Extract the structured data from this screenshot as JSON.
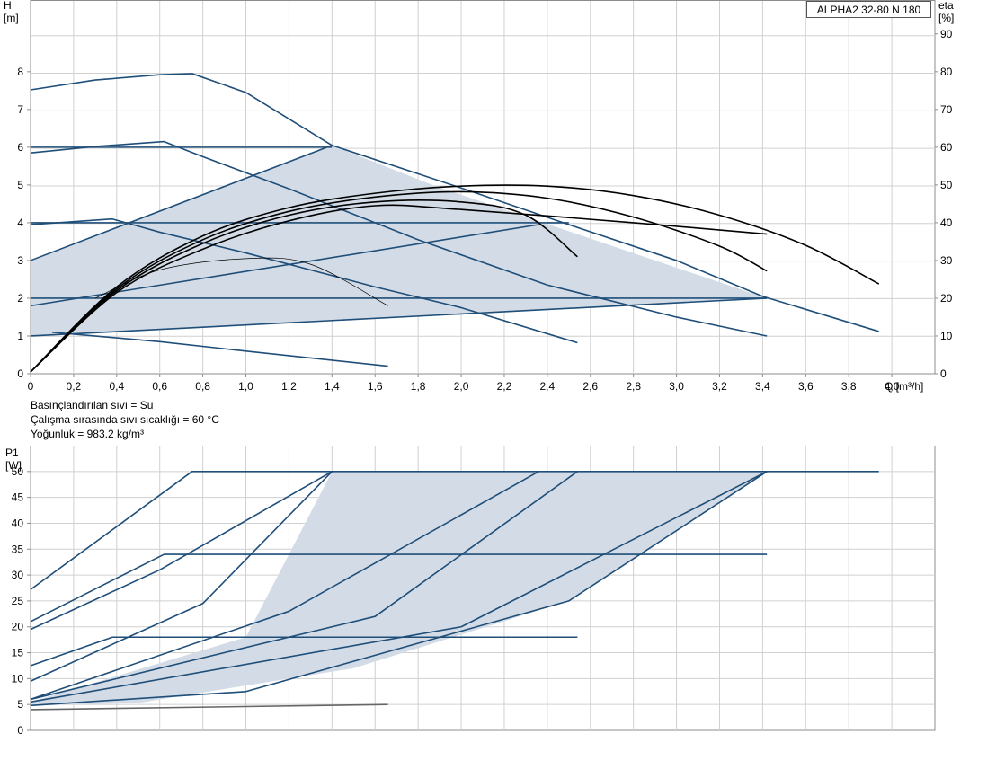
{
  "chart_data": [
    {
      "type": "line",
      "title": "ALPHA2 32-80 N 180",
      "ylabel": "H",
      "ylabel_unit": "[m]",
      "y2label": "eta",
      "y2label_unit": "[%]",
      "xlabel": "Q [m³/h]",
      "xlim": [
        0,
        4.2
      ],
      "ylim": [
        0,
        9.9
      ],
      "y2lim": [
        0,
        99
      ],
      "x_ticks": [
        "0",
        "0,2",
        "0,4",
        "0,6",
        "0,8",
        "1,0",
        "1,2",
        "1,4",
        "1,6",
        "1,8",
        "2,0",
        "2,2",
        "2,4",
        "2,6",
        "2,8",
        "3,0",
        "3,2",
        "3,4",
        "3,6",
        "3,8",
        "4,0"
      ],
      "y_ticks": [
        "0",
        "1",
        "2",
        "3",
        "4",
        "5",
        "6",
        "7",
        "8"
      ],
      "y2_ticks": [
        "0",
        "10",
        "20",
        "30",
        "40",
        "50",
        "60",
        "70",
        "80",
        "90"
      ],
      "grid": true,
      "shaded_region": {
        "color": "#d3dce6",
        "points": [
          [
            0,
            1.0
          ],
          [
            0,
            3.0
          ],
          [
            1.4,
            6.05
          ],
          [
            1.88,
            4.97
          ],
          [
            3.42,
            2.0
          ],
          [
            0,
            1.0
          ]
        ]
      },
      "series": [
        {
          "values": [
            [
              0,
              7.52
            ],
            [
              0.3,
              7.78
            ],
            [
              0.6,
              7.92
            ],
            [
              0.75,
              7.95
            ],
            [
              1.0,
              7.45
            ],
            [
              1.4,
              6.05
            ],
            [
              2.0,
              4.92
            ],
            [
              2.5,
              3.95
            ],
            [
              3.0,
              3.0
            ],
            [
              3.4,
              2.05
            ],
            [
              3.94,
              1.12
            ]
          ],
          "color": "#1f4e79"
        },
        {
          "values": [
            [
              0,
              5.85
            ],
            [
              0.3,
              6.02
            ],
            [
              0.62,
              6.15
            ],
            [
              0.8,
              5.75
            ],
            [
              1.2,
              4.9
            ],
            [
              1.8,
              3.55
            ],
            [
              2.4,
              2.35
            ],
            [
              3.0,
              1.5
            ],
            [
              3.42,
              1.0
            ]
          ],
          "color": "#1f4e79"
        },
        {
          "values": [
            [
              0,
              3.95
            ],
            [
              0.38,
              4.1
            ],
            [
              0.6,
              3.75
            ],
            [
              1.0,
              3.2
            ],
            [
              1.6,
              2.3
            ],
            [
              2.0,
              1.75
            ],
            [
              2.54,
              0.82
            ]
          ],
          "color": "#1f4e79"
        },
        {
          "values": [
            [
              0,
              6.0
            ],
            [
              1.4,
              6.0
            ]
          ],
          "color": "#1f4e79"
        },
        {
          "values": [
            [
              0,
              4.0
            ],
            [
              2.5,
              4.0
            ]
          ],
          "color": "#1f4e79"
        },
        {
          "values": [
            [
              0,
              2.0
            ],
            [
              3.42,
              2.0
            ]
          ],
          "color": "#1f4e79"
        },
        {
          "values": [
            [
              0,
              3.0
            ],
            [
              1.4,
              6.05
            ]
          ],
          "color": "#1f4e79"
        },
        {
          "values": [
            [
              0,
              1.8
            ],
            [
              2.36,
              3.95
            ]
          ],
          "color": "#1f4e79"
        },
        {
          "values": [
            [
              0,
              1.0
            ],
            [
              3.42,
              2.0
            ]
          ],
          "color": "#1f4e79"
        },
        {
          "values": [
            [
              0.1,
              1.1
            ],
            [
              0.6,
              0.85
            ],
            [
              1.0,
              0.6
            ],
            [
              1.66,
              0.2
            ]
          ],
          "color": "#1f4e79"
        },
        {
          "values": [
            [
              0,
              0.05
            ],
            [
              0.4,
              2.3
            ],
            [
              0.8,
              3.65
            ],
            [
              1.2,
              4.4
            ],
            [
              1.6,
              4.78
            ],
            [
              2.0,
              4.97
            ],
            [
              2.4,
              4.97
            ],
            [
              2.8,
              4.72
            ],
            [
              3.2,
              4.2
            ],
            [
              3.6,
              3.4
            ],
            [
              3.94,
              2.38
            ]
          ],
          "color": "#000000",
          "eta": true
        },
        {
          "values": [
            [
              0,
              0.05
            ],
            [
              0.4,
              2.25
            ],
            [
              0.8,
              3.55
            ],
            [
              1.2,
              4.3
            ],
            [
              1.6,
              4.68
            ],
            [
              2.0,
              4.82
            ],
            [
              2.4,
              4.65
            ],
            [
              2.8,
              4.15
            ],
            [
              3.2,
              3.38
            ],
            [
              3.42,
              2.72
            ]
          ],
          "color": "#000000",
          "eta": true
        },
        {
          "values": [
            [
              0,
              0.05
            ],
            [
              0.4,
              2.2
            ],
            [
              0.8,
              3.45
            ],
            [
              1.2,
              4.2
            ],
            [
              1.6,
              4.55
            ],
            [
              2.0,
              4.55
            ],
            [
              2.3,
              4.2
            ],
            [
              2.54,
              3.1
            ]
          ],
          "color": "#000000",
          "eta": true
        },
        {
          "values": [
            [
              0,
              0.05
            ],
            [
              0.4,
              2.15
            ],
            [
              0.8,
              3.3
            ],
            [
              1.2,
              4.05
            ],
            [
              1.6,
              4.45
            ],
            [
              2.0,
              4.35
            ],
            [
              2.8,
              4.0
            ],
            [
              3.42,
              3.7
            ]
          ],
          "color": "#000000",
          "eta": true
        },
        {
          "values": [
            [
              0.3,
              2.0
            ],
            [
              0.6,
              2.75
            ],
            [
              1.0,
              3.05
            ],
            [
              1.3,
              2.9
            ],
            [
              1.66,
              1.8
            ]
          ],
          "color": "#000000",
          "eta": true
        }
      ]
    },
    {
      "type": "line",
      "ylabel": "P1",
      "ylabel_unit": "[W]",
      "xlim": [
        0,
        4.2
      ],
      "ylim": [
        0,
        55
      ],
      "y_ticks": [
        "0",
        "5",
        "10",
        "15",
        "20",
        "25",
        "30",
        "35",
        "40",
        "45",
        "50"
      ],
      "grid": true,
      "shaded_region": {
        "color": "#d3dce6",
        "points": [
          [
            0,
            5.5
          ],
          [
            1.0,
            18.0
          ],
          [
            1.4,
            50
          ],
          [
            3.42,
            50
          ],
          [
            2.5,
            25
          ],
          [
            1.5,
            12
          ],
          [
            0.5,
            5.3
          ],
          [
            0,
            4.8
          ]
        ]
      },
      "series": [
        {
          "values": [
            [
              0,
              27.2
            ],
            [
              0.75,
              50
            ],
            [
              3.94,
              50
            ]
          ],
          "color": "#1f4e79"
        },
        {
          "values": [
            [
              0,
              21.0
            ],
            [
              0.62,
              34.0
            ],
            [
              3.42,
              34.0
            ]
          ],
          "color": "#1f4e79"
        },
        {
          "values": [
            [
              0,
              12.5
            ],
            [
              0.38,
              18.0
            ],
            [
              2.54,
              18.0
            ]
          ],
          "color": "#1f4e79"
        },
        {
          "values": [
            [
              0,
              19.5
            ],
            [
              0.6,
              31.0
            ],
            [
              1.4,
              50
            ]
          ],
          "color": "#1f4e79"
        },
        {
          "values": [
            [
              0,
              9.5
            ],
            [
              0.8,
              24.5
            ],
            [
              1.4,
              50
            ]
          ],
          "color": "#1f4e79"
        },
        {
          "values": [
            [
              0,
              6.0
            ],
            [
              1.2,
              23.0
            ],
            [
              2.36,
              50
            ]
          ],
          "color": "#1f4e79"
        },
        {
          "values": [
            [
              0,
              6.0
            ],
            [
              1.6,
              22.0
            ],
            [
              2.54,
              50
            ]
          ],
          "color": "#1f4e79"
        },
        {
          "values": [
            [
              0,
              5.5
            ],
            [
              2.0,
              20.0
            ],
            [
              3.42,
              50
            ]
          ],
          "color": "#1f4e79"
        },
        {
          "values": [
            [
              0,
              4.8
            ],
            [
              1.0,
              7.5
            ],
            [
              2.5,
              25.0
            ],
            [
              3.42,
              50
            ]
          ],
          "color": "#1f4e79"
        },
        {
          "values": [
            [
              0,
              4.0
            ],
            [
              1.66,
              5.0
            ]
          ],
          "color": "#666666"
        }
      ]
    }
  ],
  "notes": {
    "line1": "Basınçlandırılan sıvı = Su",
    "line2": "Çalışma sırasında sıvı sıcaklığı = 60 °C",
    "line3": "Yoğunluk = 983.2 kg/m³"
  }
}
